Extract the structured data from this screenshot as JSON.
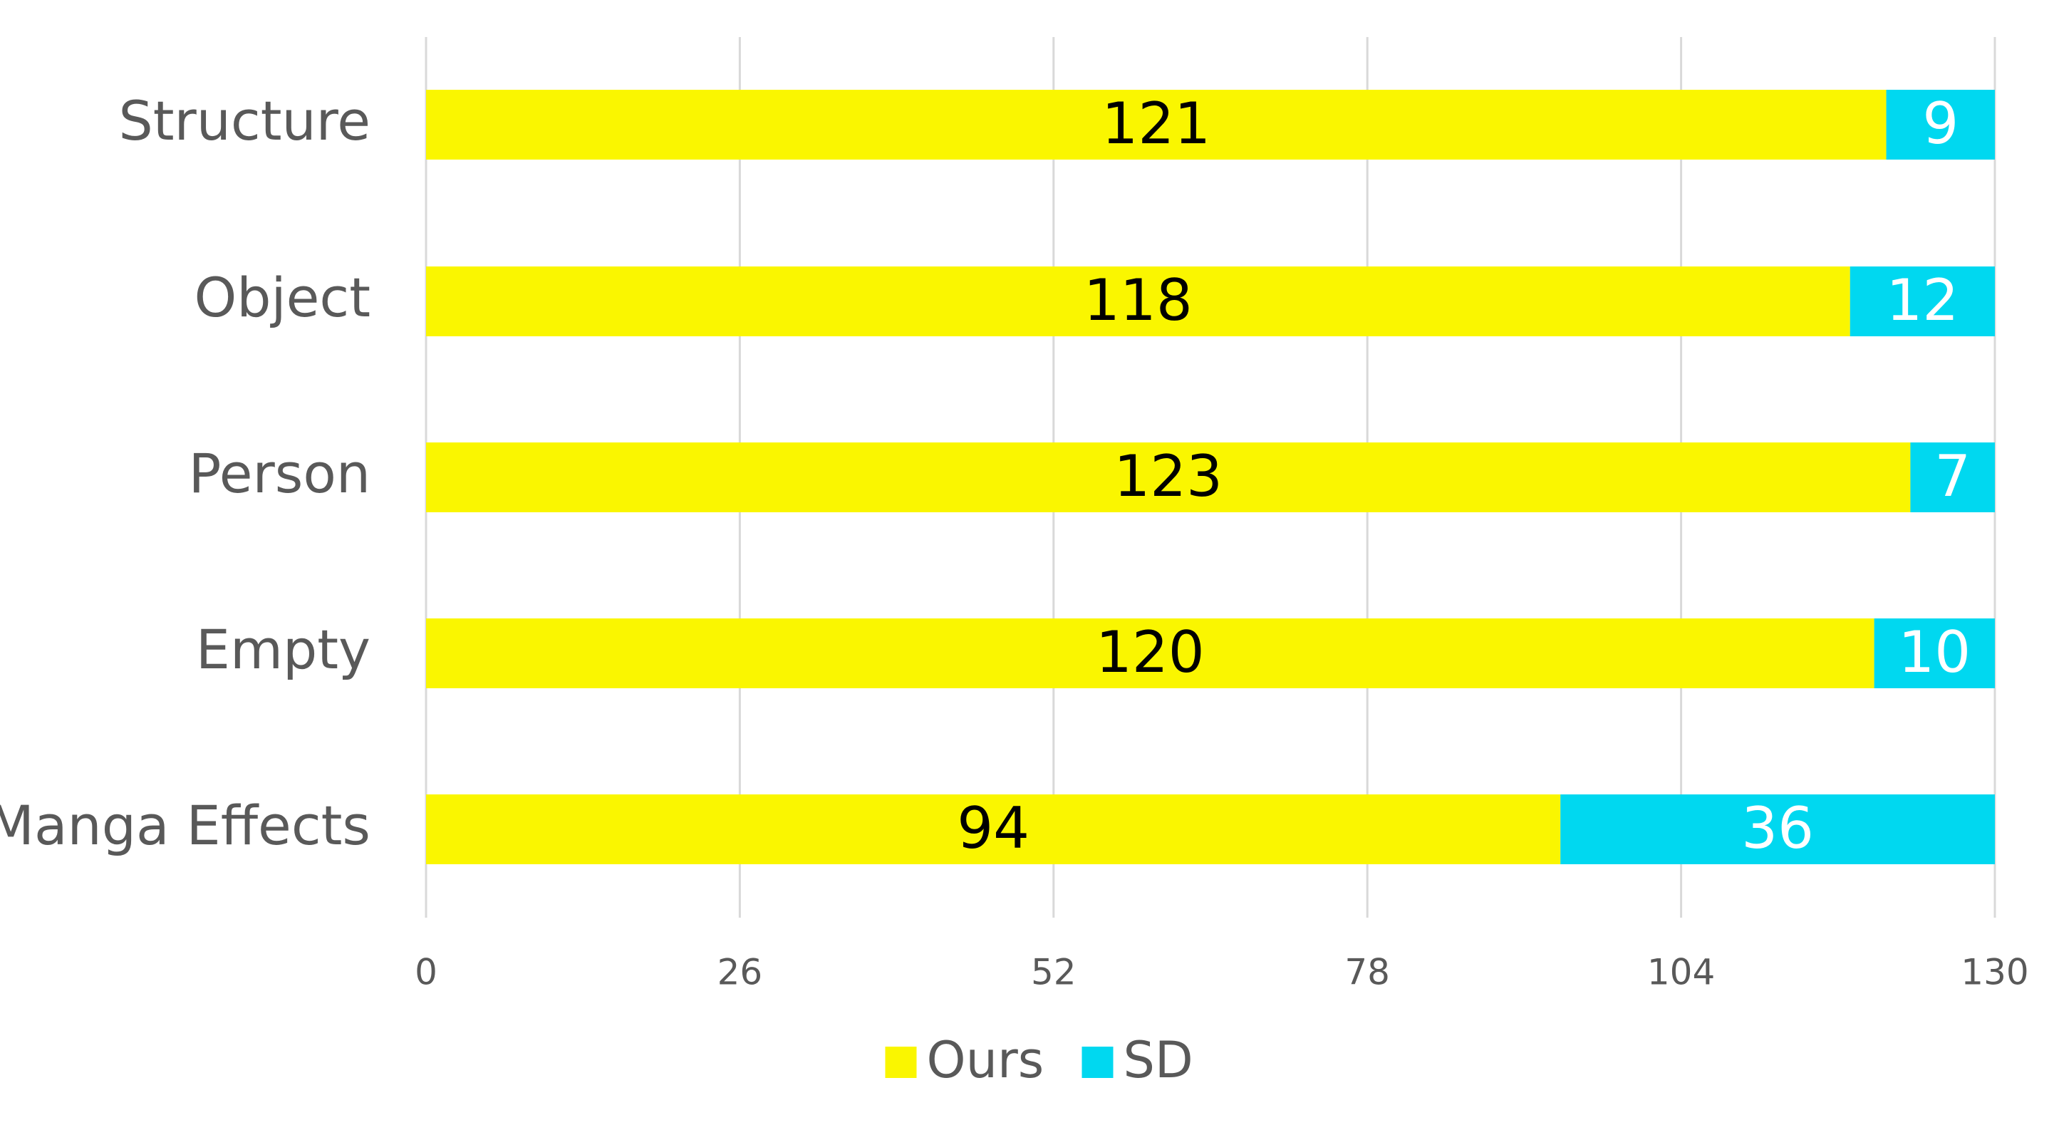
{
  "chart_data": {
    "type": "bar",
    "orientation": "horizontal",
    "stacked": true,
    "categories": [
      "Structure",
      "Object",
      "Person",
      "Empty",
      "Manga Effects"
    ],
    "series": [
      {
        "name": "Ours",
        "values": [
          121,
          118,
          123,
          120,
          94
        ],
        "color": "#FAF600"
      },
      {
        "name": "SD",
        "values": [
          9,
          12,
          7,
          10,
          36
        ],
        "color": "#00D8F0"
      }
    ],
    "xticks": [
      0,
      26,
      52,
      78,
      104,
      130
    ],
    "xlim": [
      0,
      130
    ],
    "grid": true,
    "legend_position": "bottom",
    "data_label_colors": [
      "#000000",
      "#ffffff"
    ]
  }
}
